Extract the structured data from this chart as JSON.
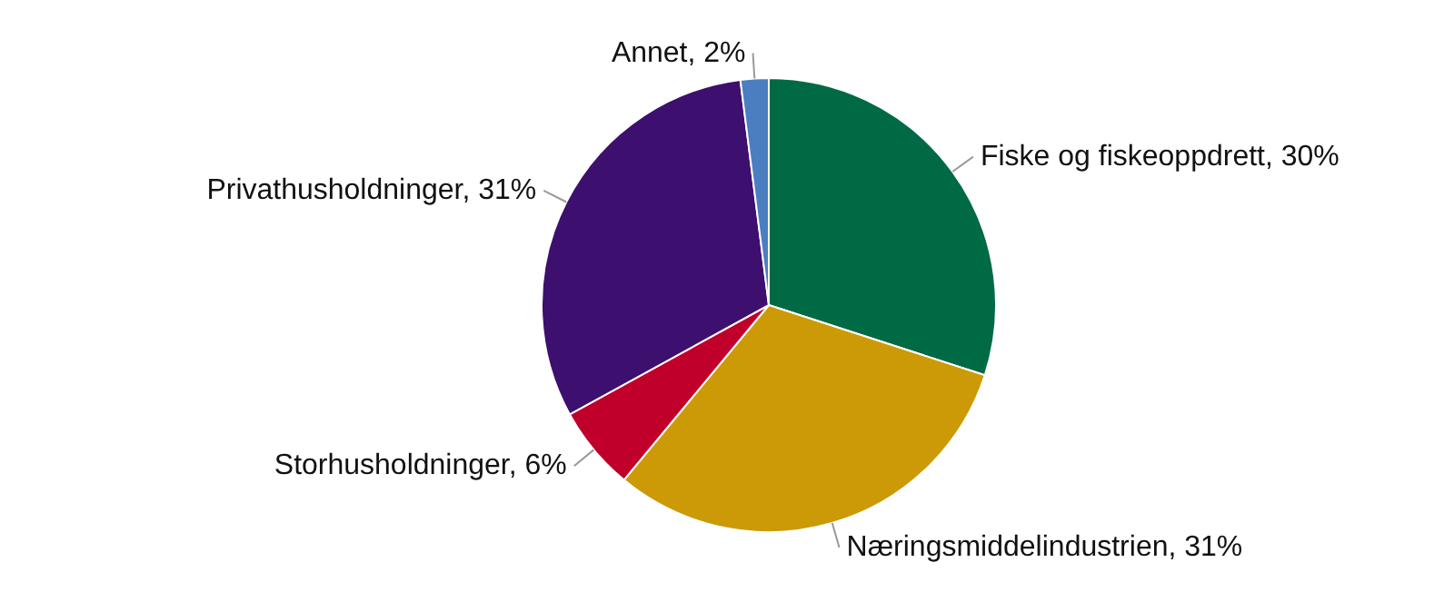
{
  "chart_data": {
    "type": "pie",
    "categories": [
      "Fiske og fiskeoppdrett",
      "Næringsmiddelindustrien",
      "Storhusholdninger",
      "Privathusholdninger",
      "Annet"
    ],
    "values": [
      30,
      31,
      6,
      31,
      2
    ],
    "value_labels": [
      "30%",
      "31%",
      "6%",
      "31%",
      "2%"
    ],
    "colors": [
      "#006a44",
      "#cc9a06",
      "#c0002a",
      "#3d0f6e",
      "#4a7ec0"
    ]
  }
}
